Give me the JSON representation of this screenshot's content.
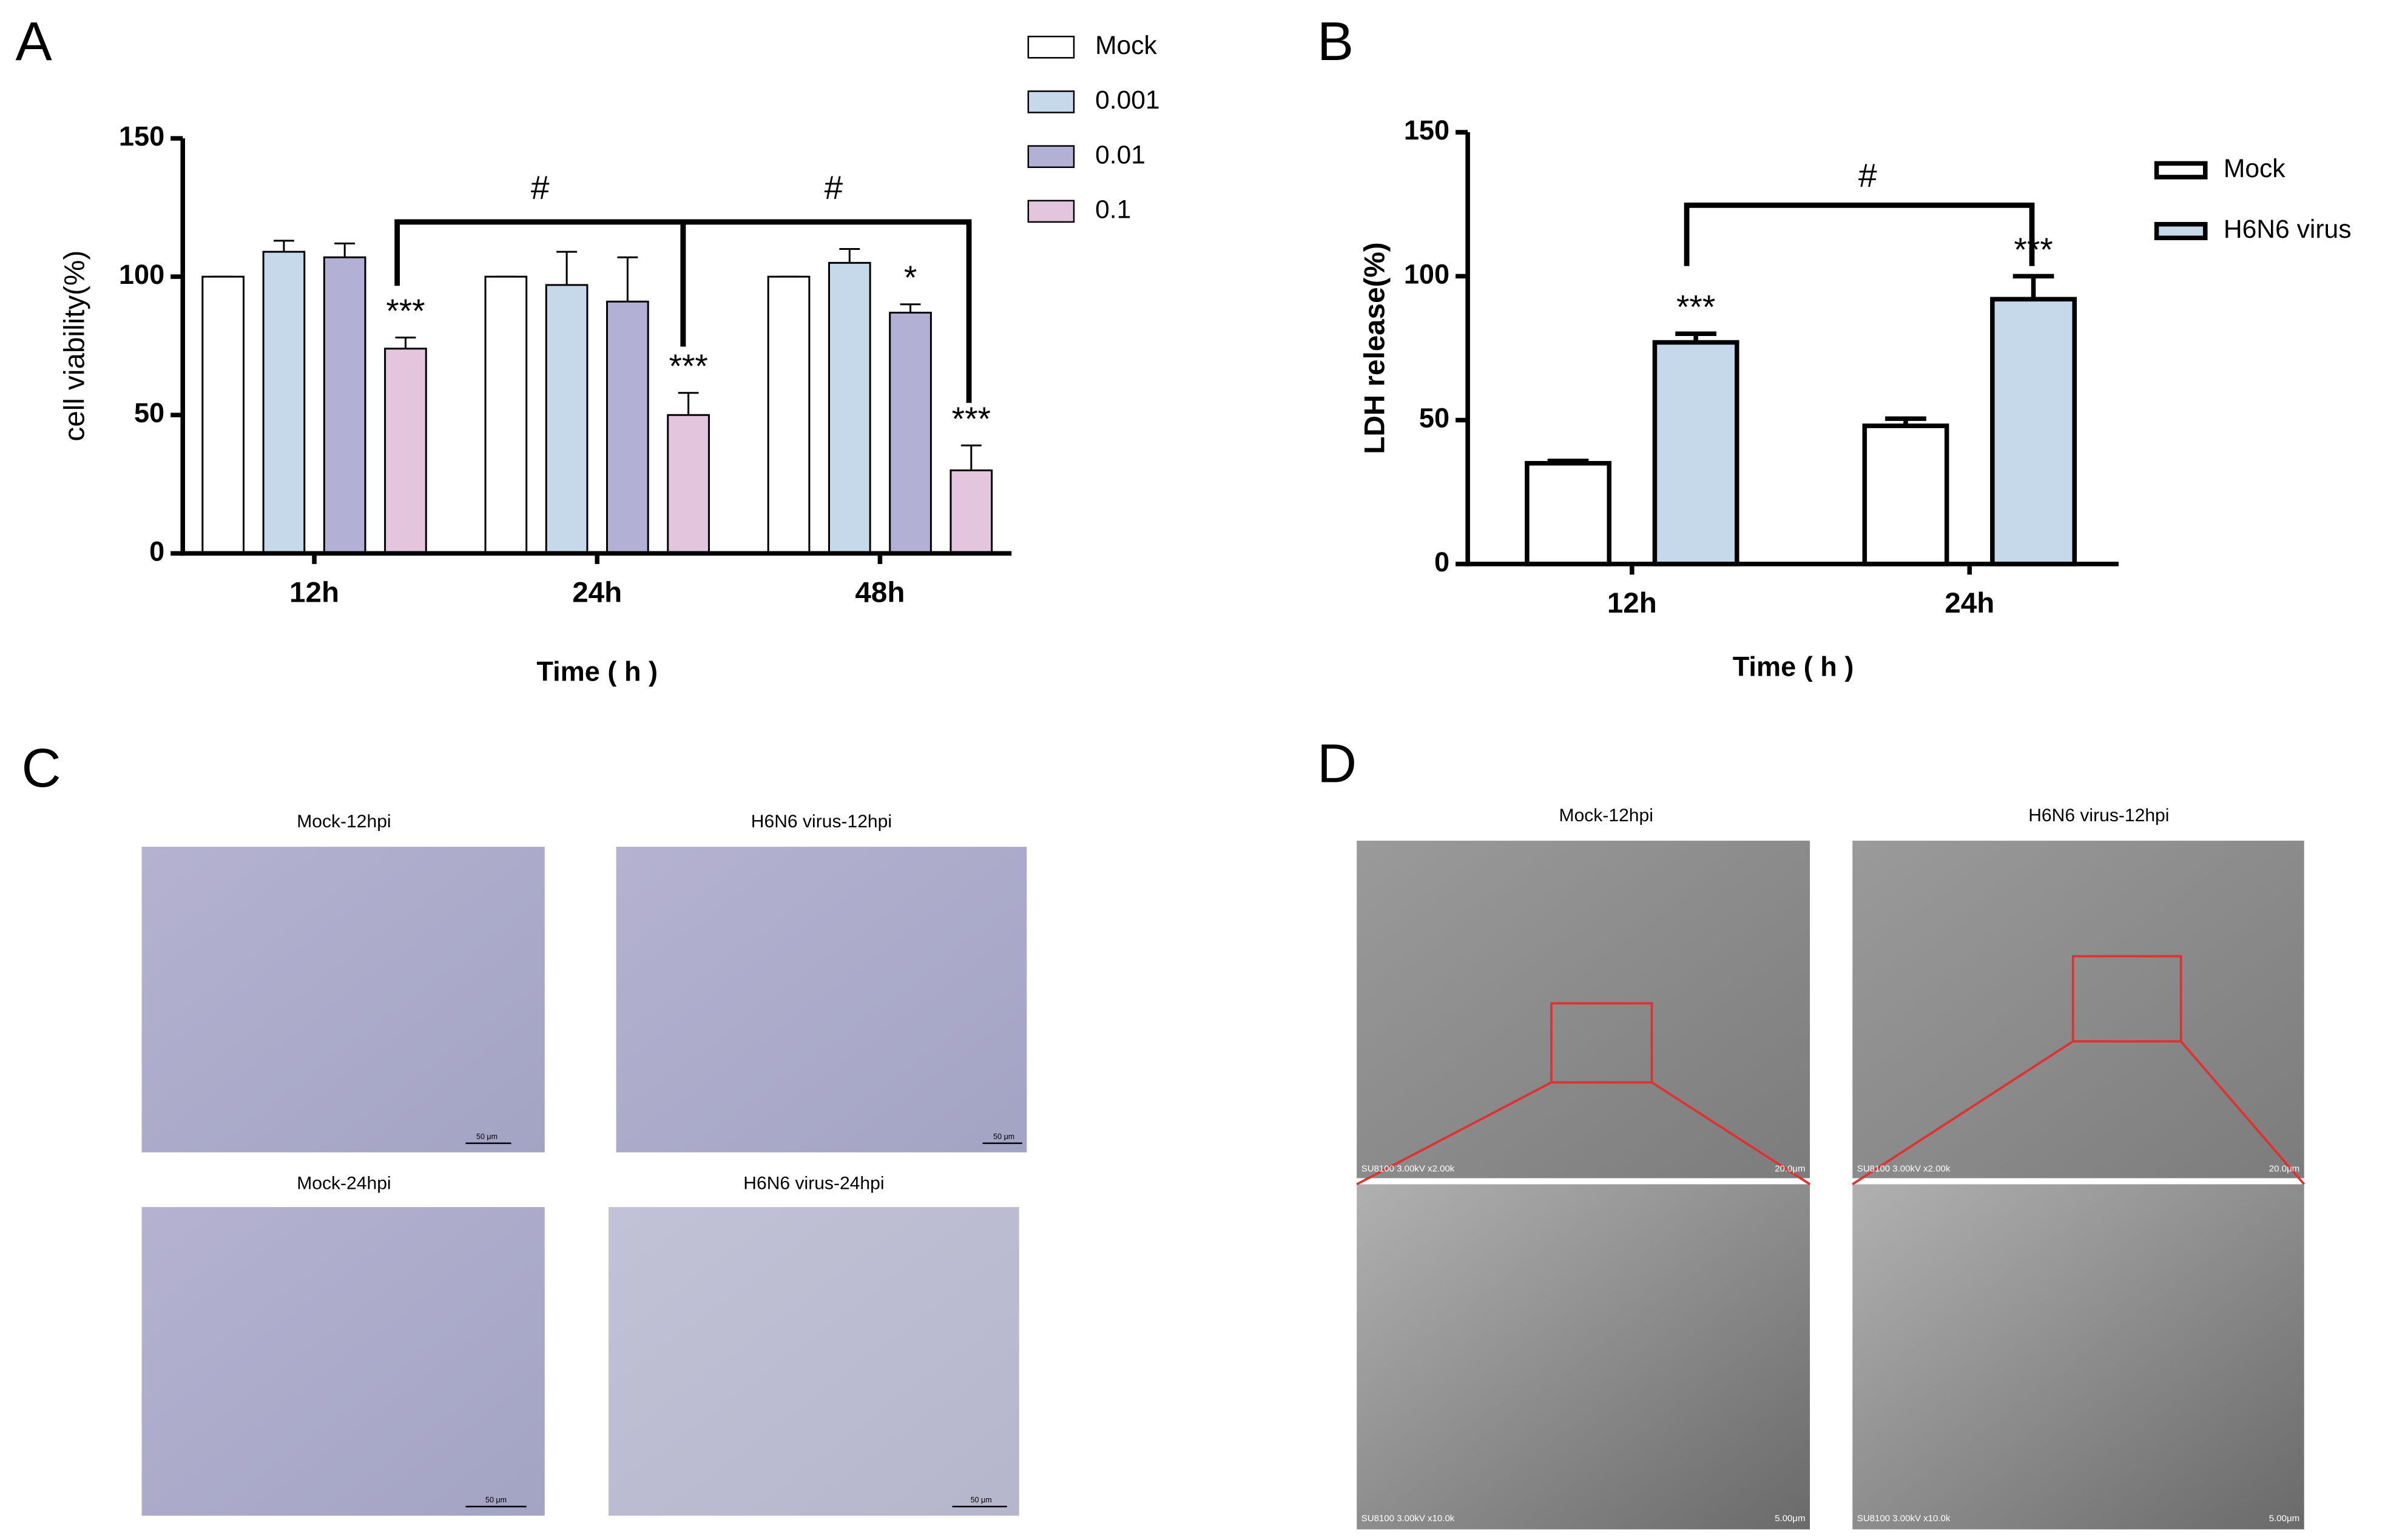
{
  "chart_data": [
    {
      "type": "bar",
      "panel_label": "A",
      "y_label": "cell viability(%)",
      "x_label": "Time ( h )",
      "categories": [
        "12h",
        "24h",
        "48h"
      ],
      "series": [
        {
          "name": "Mock",
          "color": "#ffffff",
          "values": [
            100,
            100,
            100
          ],
          "errors": [
            0,
            0,
            0
          ]
        },
        {
          "name": "0.001",
          "color": "#c5d9ea",
          "values": [
            109,
            97,
            105
          ],
          "errors": [
            4,
            12,
            5
          ]
        },
        {
          "name": "0.01",
          "color": "#b3b0d6",
          "values": [
            107,
            91,
            87
          ],
          "errors": [
            5,
            16,
            3
          ],
          "significance": [
            null,
            null,
            "*"
          ]
        },
        {
          "name": "0.1",
          "color": "#e3c6de",
          "values": [
            74,
            50,
            30
          ],
          "errors": [
            4,
            8,
            9
          ],
          "significance": [
            "***",
            "***",
            "***"
          ]
        }
      ],
      "ylim": [
        0,
        150
      ],
      "yticks": [
        0,
        50,
        100,
        150
      ],
      "annotations": [
        "#",
        "#"
      ]
    },
    {
      "type": "bar",
      "panel_label": "B",
      "y_label": "LDH release(%)",
      "x_label": "Time ( h )",
      "categories": [
        "12h",
        "24h"
      ],
      "series": [
        {
          "name": "Mock",
          "color": "#ffffff",
          "values": [
            35,
            48
          ],
          "errors": [
            0.8,
            2.5
          ]
        },
        {
          "name": "H6N6 virus",
          "color": "#c5d9ea",
          "values": [
            77,
            92
          ],
          "errors": [
            3,
            8
          ],
          "significance": [
            "***",
            "***"
          ]
        }
      ],
      "ylim": [
        0,
        150
      ],
      "yticks": [
        0,
        50,
        100,
        150
      ],
      "annotations": [
        "#"
      ]
    }
  ],
  "panel_c": {
    "label": "C",
    "images": [
      {
        "title": "Mock-12hpi",
        "scale_label": "50 μm"
      },
      {
        "title": "H6N6 virus-12hpi",
        "scale_label": "50 μm"
      },
      {
        "title": "Mock-24hpi",
        "scale_label": "50 μm"
      },
      {
        "title": "H6N6 virus-24hpi",
        "scale_label": "50 μm"
      }
    ]
  },
  "panel_d": {
    "label": "D",
    "images": [
      {
        "title": "Mock-12hpi",
        "overview_caption": "SU8100 3.00kV x2.00k",
        "overview_scale": "20.0μm",
        "detail_caption": "SU8100 3.00kV x10.0k",
        "detail_scale": "5.00μm"
      },
      {
        "title": "H6N6 virus-12hpi",
        "overview_caption": "SU8100 3.00kV x2.00k",
        "overview_scale": "20.0μm",
        "detail_caption": "SU8100 3.00kV x10.0k",
        "detail_scale": "5.00μm"
      }
    ]
  }
}
